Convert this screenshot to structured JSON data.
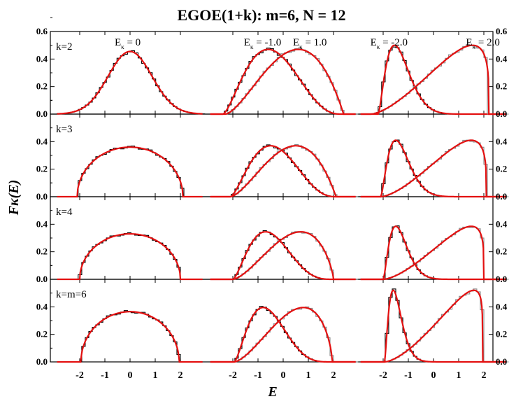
{
  "chart_data": {
    "type": "line",
    "title": "EGOE(1+k): m=6, N = 12",
    "xlabel": "E",
    "ylabel": "Fκ(E)",
    "ylim": [
      0,
      0.6
    ],
    "yticks": [
      "0.0",
      "0.2",
      "0.4",
      "0.6"
    ],
    "xticks": [
      "-2",
      "-1",
      "0",
      "1",
      "2"
    ],
    "grid": false,
    "column_labels": [
      [
        {
          "text": "E",
          "sub": "κ",
          "value": " = 0"
        }
      ],
      [
        {
          "text": "E",
          "sub": "κ",
          "value": " = -1.0"
        },
        {
          "text": "E",
          "sub": "κ",
          "value": " = 1.0"
        }
      ],
      [
        {
          "text": "E",
          "sub": "κ",
          "value": " = -2.0"
        },
        {
          "text": "E",
          "sub": "κ",
          "value": " = 2.0"
        }
      ]
    ],
    "rows": [
      {
        "label": "k=2",
        "curves": [
          {
            "column": 0,
            "Ek": 0.0,
            "type": "gaussian",
            "peak_x": 0.0,
            "peak_y": 0.455,
            "half_width": 0.87
          },
          {
            "column": 1,
            "Ek": -1.0,
            "type": "skewed",
            "peak_x": -0.6,
            "peak_y": 0.47,
            "support": [
              -2.4,
              2.3
            ]
          },
          {
            "column": 1,
            "Ek": 1.0,
            "type": "skewed",
            "peak_x": 0.6,
            "peak_y": 0.47,
            "support": [
              -2.3,
              2.4
            ]
          },
          {
            "column": 2,
            "Ek": -2.0,
            "type": "skewed",
            "peak_x": -1.55,
            "peak_y": 0.5,
            "support": [
              -2.2,
              2.5
            ]
          },
          {
            "column": 2,
            "Ek": 2.0,
            "type": "skewed",
            "peak_x": 1.55,
            "peak_y": 0.5,
            "support": [
              -2.5,
              2.2
            ]
          }
        ]
      },
      {
        "label": "k=3",
        "curves": [
          {
            "column": 0,
            "Ek": 0.0,
            "type": "semicircle",
            "peak_x": 0.0,
            "peak_y": 0.36,
            "support": [
              -2.1,
              2.1
            ]
          },
          {
            "column": 1,
            "Ek": -1.0,
            "type": "skewed",
            "peak_x": -0.5,
            "peak_y": 0.37,
            "support": [
              -2.1,
              2.1
            ]
          },
          {
            "column": 1,
            "Ek": 1.0,
            "type": "skewed",
            "peak_x": 0.5,
            "peak_y": 0.37,
            "support": [
              -2.1,
              2.1
            ]
          },
          {
            "column": 2,
            "Ek": -2.0,
            "type": "skewed",
            "peak_x": -1.5,
            "peak_y": 0.41,
            "support": [
              -2.1,
              2.1
            ]
          },
          {
            "column": 2,
            "Ek": 2.0,
            "type": "skewed",
            "peak_x": 1.5,
            "peak_y": 0.41,
            "support": [
              -2.1,
              2.1
            ]
          }
        ]
      },
      {
        "label": "k=4",
        "curves": [
          {
            "column": 0,
            "Ek": 0.0,
            "type": "semicircle",
            "peak_x": 0.0,
            "peak_y": 0.33,
            "support": [
              -2.0,
              2.0
            ]
          },
          {
            "column": 1,
            "Ek": -1.0,
            "type": "skewed",
            "peak_x": -0.7,
            "peak_y": 0.345,
            "support": [
              -2.0,
              2.0
            ]
          },
          {
            "column": 1,
            "Ek": 1.0,
            "type": "skewed",
            "peak_x": 0.7,
            "peak_y": 0.345,
            "support": [
              -2.0,
              2.0
            ]
          },
          {
            "column": 2,
            "Ek": -2.0,
            "type": "skewed",
            "peak_x": -1.5,
            "peak_y": 0.385,
            "support": [
              -2.0,
              2.0
            ]
          },
          {
            "column": 2,
            "Ek": 2.0,
            "type": "skewed",
            "peak_x": 1.5,
            "peak_y": 0.385,
            "support": [
              -2.0,
              2.0
            ]
          }
        ]
      },
      {
        "label": "k=m=6",
        "curves": [
          {
            "column": 0,
            "Ek": 0.0,
            "type": "semicircle",
            "peak_x": 0.0,
            "peak_y": 0.365,
            "support": [
              -1.95,
              1.95
            ]
          },
          {
            "column": 1,
            "Ek": -1.0,
            "type": "skewed",
            "peak_x": -0.8,
            "peak_y": 0.395,
            "support": [
              -1.95,
              1.95
            ]
          },
          {
            "column": 1,
            "Ek": 1.0,
            "type": "skewed",
            "peak_x": 0.8,
            "peak_y": 0.395,
            "support": [
              -1.95,
              1.95
            ]
          },
          {
            "column": 2,
            "Ek": -2.0,
            "type": "skewed",
            "peak_x": -1.6,
            "peak_y": 0.52,
            "support": [
              -1.95,
              1.95
            ]
          },
          {
            "column": 2,
            "Ek": 2.0,
            "type": "skewed",
            "peak_x": 1.6,
            "peak_y": 0.52,
            "support": [
              -1.95,
              1.95
            ]
          }
        ]
      }
    ],
    "colors": {
      "curve": "#e31010",
      "histogram_left": "#000000",
      "histogram_right": "#888888",
      "frame": "#000000"
    }
  }
}
